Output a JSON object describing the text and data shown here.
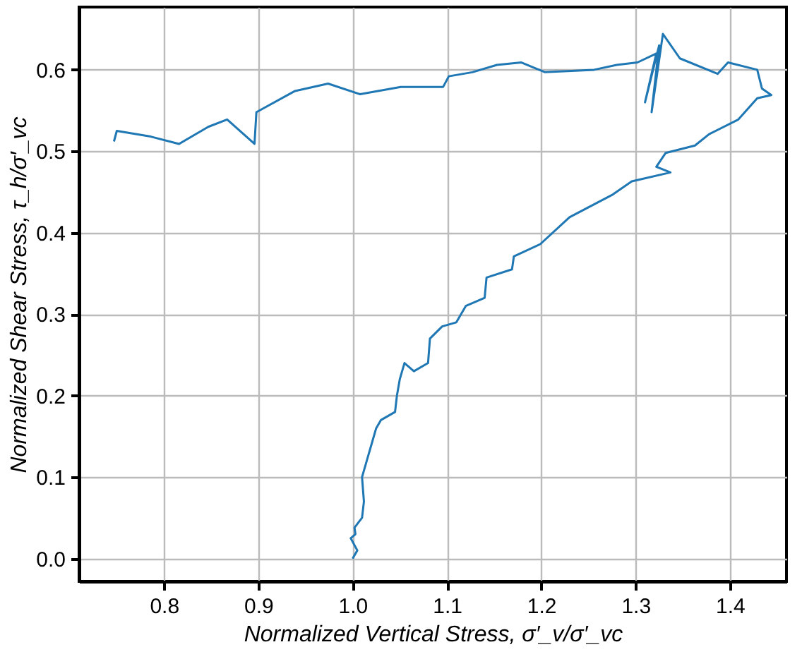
{
  "chart_data": {
    "type": "line",
    "xlabel": "Normalized Vertical Stress, σ′_v/σ′_vc",
    "ylabel": "Normalized Shear Stress, τ_h/σ′_vc",
    "x": [
      1.0,
      1.005,
      0.998,
      1.003,
      1.002,
      1.01,
      1.012,
      1.01,
      1.015,
      1.02,
      1.025,
      1.03,
      1.045,
      1.047,
      1.05,
      1.055,
      1.065,
      1.08,
      1.082,
      1.095,
      1.11,
      1.12,
      1.14,
      1.142,
      1.169,
      1.171,
      1.199,
      1.23,
      1.276,
      1.296,
      1.337,
      1.322,
      1.332,
      1.363,
      1.378,
      1.409,
      1.429,
      1.444,
      1.434,
      1.429,
      1.398,
      1.387,
      1.347,
      1.329,
      1.317,
      1.325,
      1.31,
      1.322,
      1.302,
      1.28,
      1.256,
      1.204,
      1.179,
      1.153,
      1.127,
      1.102,
      1.096,
      1.051,
      1.008,
      0.974,
      0.939,
      0.898,
      0.896,
      0.867,
      0.847,
      0.816,
      0.786,
      0.75,
      0.747
    ],
    "values": [
      0.0,
      0.01,
      0.025,
      0.03,
      0.038,
      0.05,
      0.07,
      0.1,
      0.12,
      0.14,
      0.16,
      0.17,
      0.18,
      0.2,
      0.22,
      0.24,
      0.23,
      0.24,
      0.27,
      0.285,
      0.29,
      0.31,
      0.32,
      0.345,
      0.355,
      0.371,
      0.386,
      0.419,
      0.447,
      0.463,
      0.474,
      0.481,
      0.498,
      0.507,
      0.521,
      0.539,
      0.565,
      0.569,
      0.577,
      0.6,
      0.609,
      0.595,
      0.614,
      0.644,
      0.548,
      0.63,
      0.56,
      0.62,
      0.609,
      0.606,
      0.6,
      0.597,
      0.609,
      0.606,
      0.597,
      0.592,
      0.579,
      0.579,
      0.57,
      0.583,
      0.574,
      0.548,
      0.509,
      0.539,
      0.53,
      0.509,
      0.518,
      0.525,
      0.512
    ],
    "color": "#1f77b4",
    "xlim": [
      0.71,
      1.46
    ],
    "ylim": [
      -0.028,
      0.677
    ],
    "xticks": [
      0.8,
      0.9,
      {
        "value": 1,
        "label": "1.0"
      },
      1.1,
      1.2,
      1.3,
      1.4
    ],
    "yticks": [
      {
        "value": 0,
        "label": "0.0"
      },
      0.1,
      0.2,
      0.3,
      0.4,
      0.5,
      0.6
    ],
    "grid": true,
    "marker": "none",
    "line_style": "solid"
  }
}
